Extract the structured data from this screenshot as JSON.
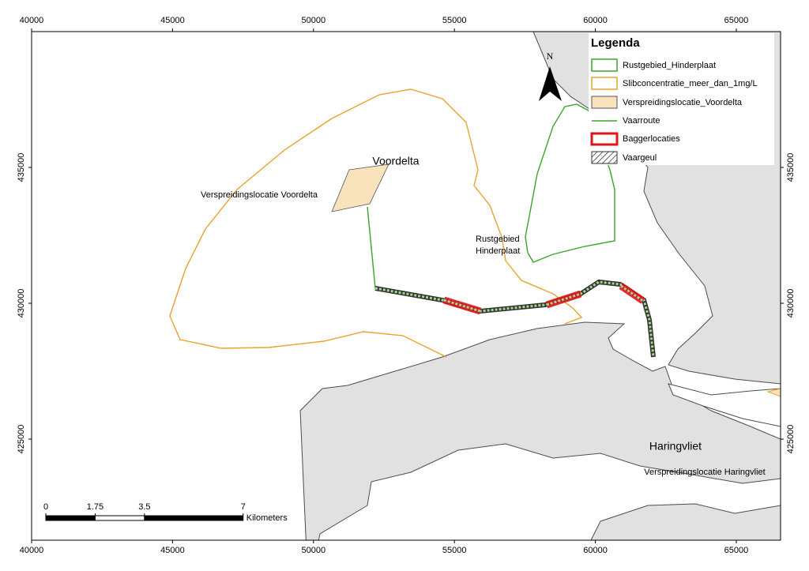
{
  "map": {
    "xlim": [
      40000,
      66570
    ],
    "ylim": [
      421280,
      440000
    ],
    "xticks": [
      40000,
      45000,
      50000,
      55000,
      60000,
      65000
    ],
    "yticks": [
      425000,
      430000,
      435000
    ],
    "labels": {
      "voordelta": "Voordelta",
      "verspreiding_voordelta": "Verspreidingslocatie Voordelta",
      "rustgebied": [
        "Rustgebied",
        "Hinderplaat"
      ],
      "haringvliet": "Haringvliet",
      "verspreiding_haringvliet": "Verspreidingslocatie Haringvliet"
    },
    "north": "N",
    "legend": {
      "title": "Legenda",
      "items": [
        "Rustgebied_Hinderplaat",
        "Slibconcentratie_meer_dan_1mg/L",
        "Verspreidingslocatie_Voordelta",
        "Vaarroute",
        "Baggerlocaties",
        "Vaargeul"
      ]
    },
    "scale_bar": {
      "ticks": [
        0,
        1.75,
        3.5,
        7
      ],
      "unit": "Kilometers"
    }
  }
}
